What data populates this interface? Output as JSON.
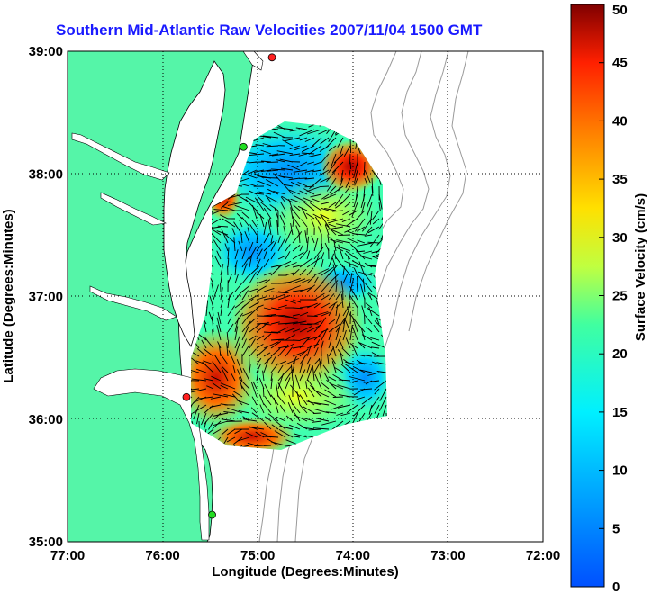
{
  "title": "Southern Mid-Atlantic Raw Velocities 2007/11/04 1500 GMT",
  "axes": {
    "xlabel": "Longitude (Degrees:Minutes)",
    "ylabel": "Latitude (Degrees:Minutes)",
    "x_ticks": [
      "77:00",
      "76:00",
      "75:00",
      "74:00",
      "73:00",
      "72:00"
    ],
    "y_ticks": [
      "39:00",
      "38:00",
      "37:00",
      "36:00",
      "35:00"
    ],
    "xlim": [
      -77,
      -72
    ],
    "ylim": [
      35,
      39
    ],
    "grid": "dotted"
  },
  "colorbar": {
    "label": "Surface Velocity (cm/s)",
    "min": 0,
    "max": 50,
    "ticks": [
      "0",
      "5",
      "10",
      "15",
      "20",
      "25",
      "30",
      "35",
      "40",
      "45",
      "50"
    ],
    "colormap": "jet"
  },
  "colors": {
    "land": "#55f5a8",
    "title": "#1a1aff",
    "station_red": "#ff2020",
    "station_green": "#22dd22"
  },
  "stations": [
    {
      "lon": -74.85,
      "lat": 38.95,
      "color": "red"
    },
    {
      "lon": -75.15,
      "lat": 38.22,
      "color": "green"
    },
    {
      "lon": -75.75,
      "lat": 36.18,
      "color": "red"
    },
    {
      "lon": -75.48,
      "lat": 35.22,
      "color": "green"
    }
  ]
}
